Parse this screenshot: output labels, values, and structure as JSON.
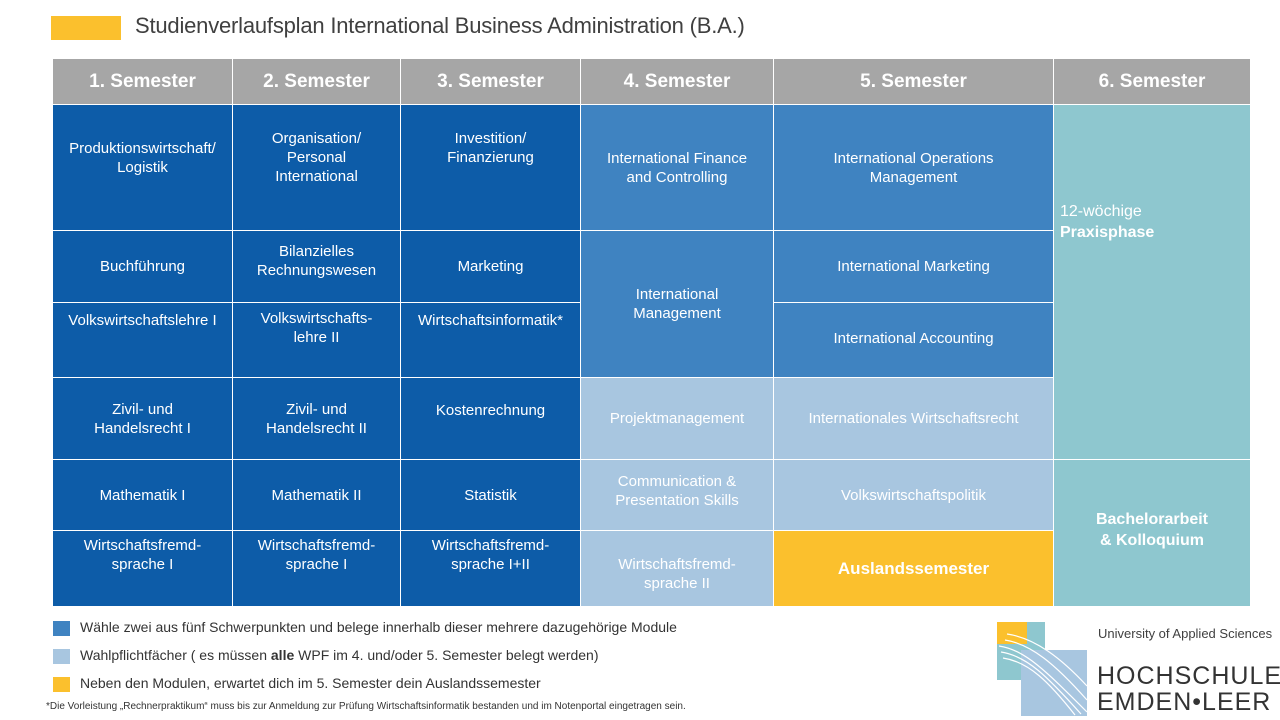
{
  "title": "Studienverlaufsplan International Business Administration (B.A.)",
  "headers": [
    "1.   Semester",
    "2. Semester",
    "3. Semester",
    "4. Semester",
    "5. Semester",
    "6. Semester"
  ],
  "sem1": [
    "Produktionswirtschaft/\nLogistik",
    "Buchführung",
    "Volkswirtschaftslehre  I",
    "Zivil- und\nHandelsrecht I",
    "Mathematik I",
    "Wirtschaftsfremd-\nsprache I"
  ],
  "sem2": [
    "Organisation/\nPersonal\nInternational",
    "Bilanzielles\nRechnungswesen",
    "Volkswirtschafts-\nlehre II",
    "Zivil- und\nHandelsrecht II",
    "Mathematik II",
    "Wirtschaftsfremd-\nsprache I"
  ],
  "sem3": [
    "Investition/\nFinanzierung",
    "Marketing",
    "Wirtschaftsinformatik*",
    "Kostenrechnung",
    "Statistik",
    "Wirtschaftsfremd-\nsprache I+II"
  ],
  "sem4": [
    "International  Finance\nand Controlling",
    "International\nManagement",
    "Projektmanagement",
    "Communication &\nPresentation Skills",
    "Wirtschaftsfremd-\nsprache II"
  ],
  "sem5": [
    "International  Operations\nManagement",
    "International  Marketing",
    "International  Accounting",
    "Internationales  Wirtschaftsrecht",
    "Volkswirtschaftspolitik",
    "Auslandssemester"
  ],
  "sem6": {
    "praxis_line1": "12-wöchige",
    "praxis_line2": "Praxisphase",
    "bachelor": "Bachelorarbeit\n& Kolloquium"
  },
  "legend": {
    "item1": "Wähle zwei aus fünf Schwerpunkten und belege innerhalb dieser mehrere dazugehörige Module",
    "item2_pre": "Wahlpflichtfächer ( es müssen ",
    "item2_bold": "alle",
    "item2_post": " WPF im 4. und/oder 5. Semester belegt werden)",
    "item3": "Neben den Modulen, erwartet dich im 5. Semester dein Auslandssemester"
  },
  "footnote": "*Die Vorleistung „Rechnerpraktikum“ muss bis zur Anmeldung zur Prüfung Wirtschaftsinformatik bestanden und im Notenportal eingetragen sein.",
  "logo": {
    "tagline": "University of Applied Sciences",
    "line1": "HOCHSCHULE",
    "line2": "EMDEN•LEER"
  },
  "colors": {
    "core": "#0d5ca8",
    "focus": "#3f83c1",
    "elective": "#a8c6e0",
    "practice": "#8ec7cf",
    "abroad": "#fbc02d",
    "header": "#a6a6a6"
  }
}
